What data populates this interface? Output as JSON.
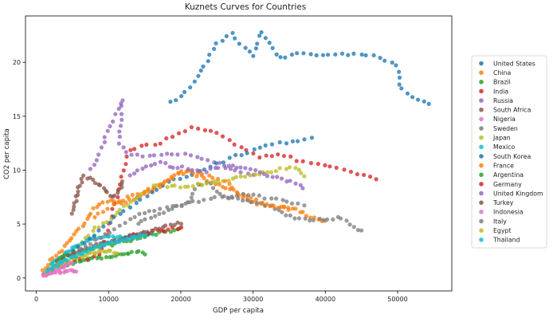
{
  "chart_data": {
    "type": "scatter",
    "title": "Kuznets Curves for Countries",
    "xlabel": "GDP per capita",
    "ylabel": "CO2 per capita",
    "xlim": [
      -1500,
      57500
    ],
    "ylim": [
      -1.2,
      24.3
    ],
    "xticks": [
      0,
      10000,
      20000,
      30000,
      40000,
      50000
    ],
    "xtick_labels": [
      "0",
      "10000",
      "20000",
      "30000",
      "40000",
      "50000"
    ],
    "yticks": [
      0,
      5,
      10,
      15,
      20
    ],
    "ytick_labels": [
      "0",
      "5",
      "10",
      "15",
      "20"
    ],
    "grid": false,
    "legend_position": "right",
    "series": [
      {
        "name": "United States",
        "color": "#1f77b4",
        "anchors": [
          [
            18500,
            16.3
          ],
          [
            20000,
            16.9
          ],
          [
            22000,
            18.3
          ],
          [
            24000,
            20.6
          ],
          [
            25000,
            21.8
          ],
          [
            27000,
            22.7
          ],
          [
            28000,
            21.8
          ],
          [
            30000,
            20.6
          ],
          [
            31000,
            22.8
          ],
          [
            34000,
            20.2
          ],
          [
            36000,
            20.8
          ],
          [
            40000,
            20.7
          ],
          [
            44000,
            20.8
          ],
          [
            47000,
            20.6
          ],
          [
            50000,
            19.7
          ],
          [
            50500,
            17.6
          ],
          [
            52000,
            16.9
          ],
          [
            54500,
            16.1
          ]
        ],
        "count": 58
      },
      {
        "name": "China",
        "color": "#ff7f0e",
        "anchors": [
          [
            800,
            0.8
          ],
          [
            1500,
            1.2
          ],
          [
            2500,
            2.0
          ],
          [
            3500,
            2.6
          ],
          [
            5000,
            3.8
          ],
          [
            6500,
            5.0
          ],
          [
            8000,
            6.4
          ],
          [
            10000,
            7.2
          ],
          [
            12000,
            7.0
          ],
          [
            14000,
            7.5
          ],
          [
            16500,
            8.3
          ],
          [
            19000,
            9.5
          ],
          [
            21000,
            9.9
          ],
          [
            24000,
            9.0
          ],
          [
            27000,
            8.2
          ],
          [
            30000,
            7.0
          ],
          [
            33000,
            6.6
          ],
          [
            36000,
            6.4
          ],
          [
            38000,
            5.6
          ],
          [
            40000,
            5.2
          ]
        ],
        "count": 85
      },
      {
        "name": "Brazil",
        "color": "#2ca02c",
        "anchors": [
          [
            3000,
            1.0
          ],
          [
            6000,
            1.6
          ],
          [
            9000,
            1.9
          ],
          [
            12000,
            2.2
          ],
          [
            14000,
            2.4
          ],
          [
            15000,
            2.3
          ]
        ],
        "count": 30
      },
      {
        "name": "India",
        "color": "#d62728",
        "anchors": [
          [
            900,
            0.4
          ],
          [
            2500,
            1.0
          ],
          [
            5000,
            1.6
          ],
          [
            7500,
            1.8
          ],
          [
            9000,
            2.2
          ],
          [
            13000,
            12.0
          ],
          [
            17000,
            12.5
          ],
          [
            20000,
            13.5
          ],
          [
            22000,
            14.0
          ],
          [
            25000,
            13.5
          ],
          [
            28000,
            12.2
          ],
          [
            31000,
            11.2
          ],
          [
            34000,
            11.5
          ],
          [
            37000,
            10.7
          ],
          [
            41000,
            10.3
          ],
          [
            44000,
            9.8
          ],
          [
            47000,
            9.1
          ]
        ],
        "count": 65
      },
      {
        "name": "Russia",
        "color": "#9467bd",
        "anchors": [
          [
            7500,
            10.0
          ],
          [
            9000,
            12.0
          ],
          [
            10500,
            14.5
          ],
          [
            12000,
            16.5
          ],
          [
            11500,
            12.5
          ],
          [
            12500,
            11.5
          ],
          [
            15000,
            11.2
          ],
          [
            18000,
            11.6
          ],
          [
            21000,
            11.4
          ],
          [
            24000,
            11.0
          ],
          [
            27000,
            10.0
          ],
          [
            30000,
            9.5
          ]
        ],
        "count": 45
      },
      {
        "name": "South Africa",
        "color": "#8c564b",
        "anchors": [
          [
            5000,
            6.0
          ],
          [
            5500,
            7.4
          ],
          [
            6000,
            8.6
          ],
          [
            6500,
            9.5
          ],
          [
            7500,
            9.1
          ],
          [
            9000,
            8.5
          ],
          [
            10500,
            7.5
          ],
          [
            11500,
            8.2
          ],
          [
            12000,
            9.0
          ]
        ],
        "count": 30
      },
      {
        "name": "Nigeria",
        "color": "#e377c2",
        "anchors": [
          [
            1200,
            0.3
          ],
          [
            2500,
            0.5
          ],
          [
            4000,
            0.6
          ],
          [
            5500,
            0.7
          ]
        ],
        "count": 20
      },
      {
        "name": "Sweden",
        "color": "#7f7f7f",
        "anchors": [
          [
            14000,
            5.0
          ],
          [
            18000,
            6.2
          ],
          [
            21000,
            7.0
          ],
          [
            22000,
            8.5
          ],
          [
            24000,
            8.8
          ],
          [
            26000,
            7.5
          ],
          [
            28000,
            7.3
          ],
          [
            31000,
            6.9
          ],
          [
            33000,
            6.5
          ],
          [
            35000,
            5.8
          ],
          [
            37000,
            5.4
          ],
          [
            40000,
            5.4
          ],
          [
            42000,
            5.6
          ],
          [
            45000,
            4.3
          ]
        ],
        "count": 55
      },
      {
        "name": "Japan",
        "color": "#bcbd22",
        "anchors": [
          [
            2000,
            1.2
          ],
          [
            4000,
            2.1
          ],
          [
            6000,
            3.0
          ],
          [
            8000,
            4.5
          ],
          [
            10000,
            5.3
          ],
          [
            12000,
            6.5
          ],
          [
            14000,
            7.5
          ],
          [
            16000,
            8.5
          ],
          [
            19000,
            8.5
          ],
          [
            21000,
            8.5
          ],
          [
            24000,
            8.8
          ],
          [
            28000,
            9.3
          ],
          [
            30000,
            9.5
          ],
          [
            32000,
            9.8
          ],
          [
            34000,
            10.1
          ],
          [
            36000,
            10.3
          ],
          [
            37000,
            9.5
          ]
        ],
        "count": 65
      },
      {
        "name": "Mexico",
        "color": "#17becf",
        "anchors": [
          [
            2000,
            1.2
          ],
          [
            4000,
            2.3
          ],
          [
            6000,
            3.2
          ],
          [
            8000,
            3.7
          ],
          [
            10000,
            3.9
          ],
          [
            12000,
            3.7
          ],
          [
            14000,
            4.0
          ],
          [
            16000,
            4.0
          ]
        ],
        "count": 45
      },
      {
        "name": "South Korea",
        "color": "#1f77b4",
        "anchors": [
          [
            3000,
            1.4
          ],
          [
            6000,
            3.0
          ],
          [
            9000,
            4.5
          ],
          [
            12000,
            6.2
          ],
          [
            15000,
            7.5
          ],
          [
            18000,
            8.8
          ],
          [
            21000,
            9.5
          ],
          [
            24000,
            10.2
          ],
          [
            27000,
            11.2
          ],
          [
            30000,
            11.8
          ],
          [
            33000,
            12.5
          ],
          [
            36000,
            12.7
          ],
          [
            38000,
            13.0
          ]
        ],
        "count": 45
      },
      {
        "name": "France",
        "color": "#ff7f0e",
        "anchors": [
          [
            8000,
            5.6
          ],
          [
            10000,
            6.5
          ],
          [
            12000,
            7.3
          ],
          [
            14000,
            7.8
          ],
          [
            17000,
            8.5
          ],
          [
            19000,
            9.3
          ],
          [
            20000,
            10.0
          ],
          [
            23000,
            9.6
          ],
          [
            26000,
            9.0
          ],
          [
            29000,
            7.5
          ],
          [
            32000,
            6.9
          ],
          [
            35000,
            6.3
          ]
        ],
        "count": 40
      },
      {
        "name": "Argentina",
        "color": "#2ca02c",
        "anchors": [
          [
            3000,
            1.8
          ],
          [
            5500,
            2.3
          ],
          [
            8000,
            2.8
          ],
          [
            11000,
            3.2
          ],
          [
            14000,
            3.7
          ],
          [
            17000,
            4.2
          ],
          [
            20000,
            4.5
          ]
        ],
        "count": 35
      },
      {
        "name": "Germany",
        "color": "#d62728",
        "anchors": [
          [
            12500,
            3.8
          ],
          [
            14500,
            4.1
          ],
          [
            16500,
            4.3
          ],
          [
            18500,
            4.5
          ],
          [
            20000,
            4.7
          ]
        ],
        "count": 15
      },
      {
        "name": "United Kingdom",
        "color": "#9467bd",
        "anchors": [
          [
            13000,
            9.5
          ],
          [
            15000,
            10.2
          ],
          [
            17000,
            10.7
          ],
          [
            19000,
            10.3
          ],
          [
            21000,
            10.2
          ],
          [
            23000,
            9.8
          ],
          [
            26000,
            10.5
          ],
          [
            29000,
            10.2
          ],
          [
            32000,
            9.5
          ],
          [
            35000,
            9.0
          ],
          [
            37000,
            8.4
          ]
        ],
        "count": 40
      },
      {
        "name": "Turkey",
        "color": "#8c564b",
        "anchors": [
          [
            3000,
            1.5
          ],
          [
            6000,
            2.5
          ],
          [
            9000,
            3.2
          ],
          [
            12000,
            3.7
          ],
          [
            15000,
            4.3
          ],
          [
            18000,
            4.8
          ],
          [
            20000,
            5.1
          ]
        ],
        "count": 35
      },
      {
        "name": "Indonesia",
        "color": "#e377c2",
        "anchors": [
          [
            1000,
            0.3
          ],
          [
            2000,
            0.6
          ],
          [
            3000,
            0.9
          ],
          [
            4000,
            1.2
          ],
          [
            5000,
            1.5
          ]
        ],
        "count": 25
      },
      {
        "name": "Italy",
        "color": "#7f7f7f",
        "anchors": [
          [
            5000,
            2.0
          ],
          [
            8000,
            3.4
          ],
          [
            11000,
            4.6
          ],
          [
            14000,
            5.8
          ],
          [
            17000,
            6.4
          ],
          [
            20000,
            6.8
          ],
          [
            23000,
            7.2
          ],
          [
            26000,
            7.5
          ],
          [
            29000,
            7.8
          ],
          [
            32000,
            7.4
          ],
          [
            35000,
            7.1
          ],
          [
            37000,
            6.7
          ]
        ],
        "count": 45
      },
      {
        "name": "Egypt",
        "color": "#bcbd22",
        "anchors": [
          [
            1500,
            0.6
          ],
          [
            3000,
            1.2
          ],
          [
            5000,
            1.8
          ],
          [
            7000,
            2.2
          ],
          [
            9000,
            2.5
          ],
          [
            11000,
            2.4
          ]
        ],
        "count": 30
      },
      {
        "name": "Thailand",
        "color": "#17becf",
        "anchors": [
          [
            1500,
            0.6
          ],
          [
            3000,
            1.3
          ],
          [
            5000,
            1.9
          ],
          [
            7000,
            2.5
          ],
          [
            9000,
            3.0
          ],
          [
            11000,
            3.4
          ],
          [
            13000,
            3.7
          ],
          [
            15000,
            4.0
          ]
        ],
        "count": 45
      }
    ]
  }
}
